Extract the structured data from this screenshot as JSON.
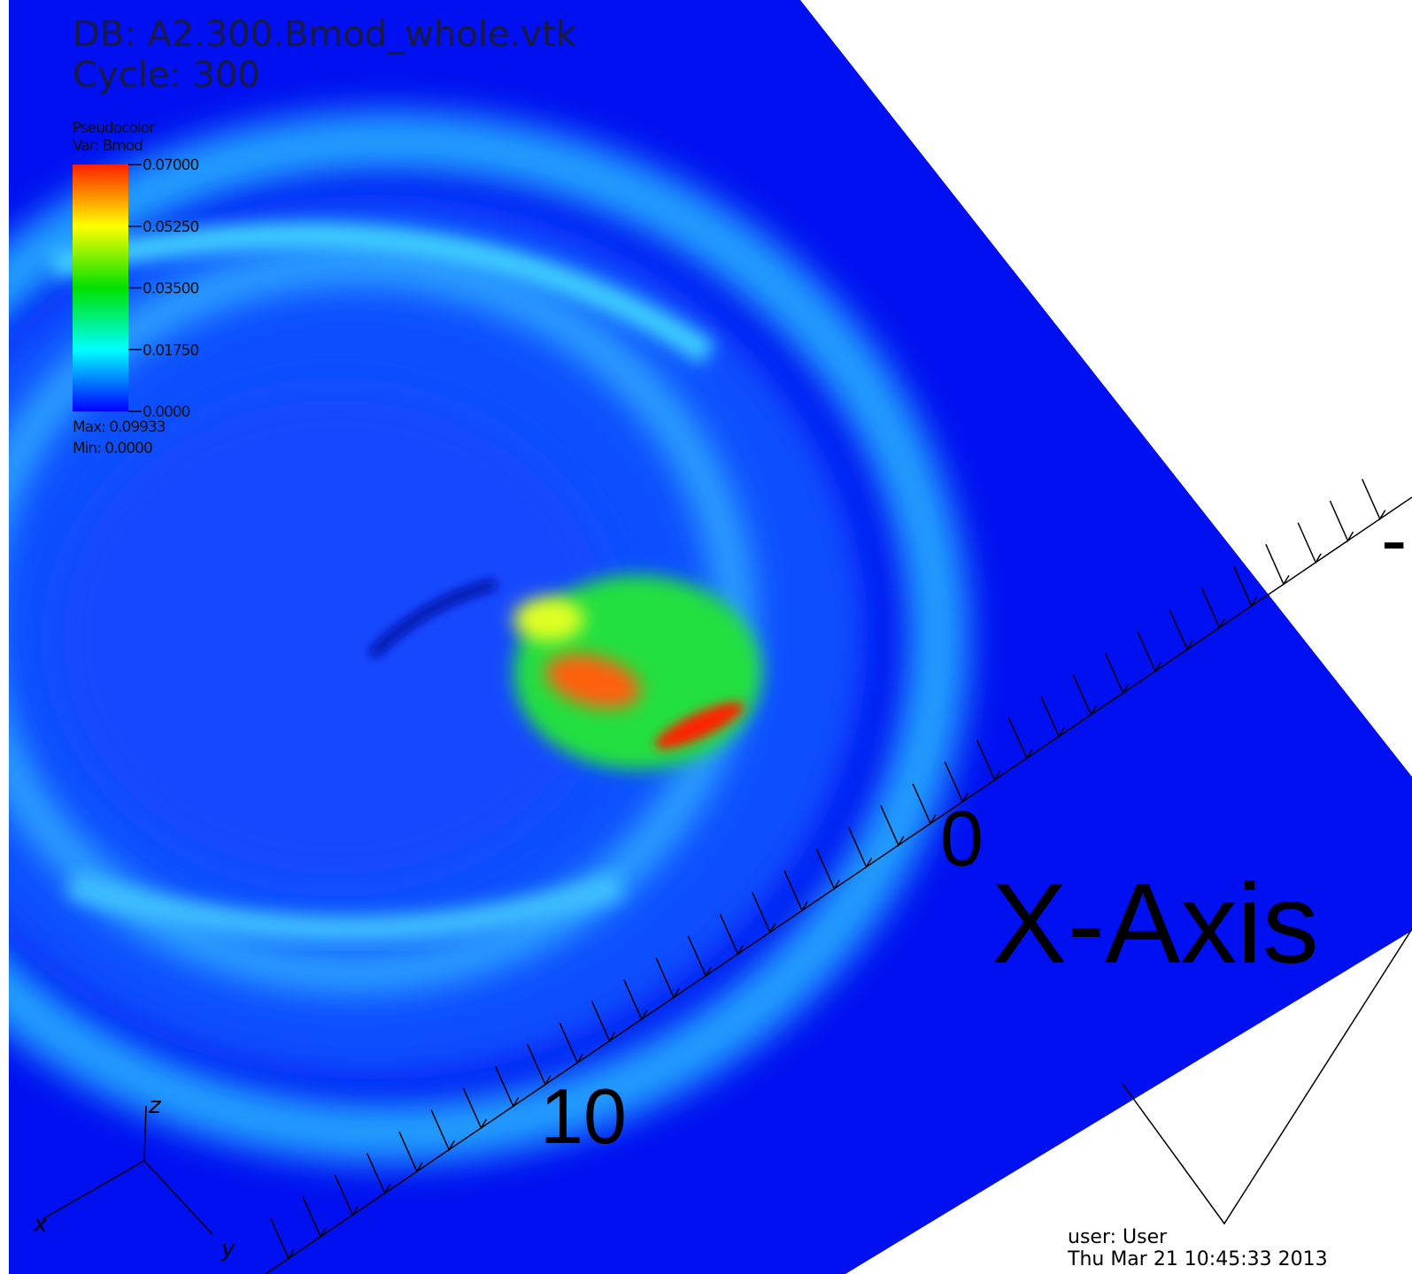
{
  "header": {
    "database": "DB: A2.300.Bmod_whole.vtk",
    "cycle": "Cycle: 300"
  },
  "legend": {
    "plot": "Pseudocolor",
    "variable": "Var: Bmod",
    "ticks": [
      "0.07000",
      "0.05250",
      "0.03500",
      "0.01750",
      "0.0000"
    ],
    "max": "Max:  0.09933",
    "min": "Min:  0.0000"
  },
  "axis": {
    "title": "X-Axis",
    "labels": [
      "0",
      "10"
    ],
    "partial": "-"
  },
  "triad": {
    "x": "x",
    "y": "y",
    "z": "z"
  },
  "footer": {
    "user": "user: User",
    "date": "Thu Mar 21 10:45:33 2013"
  }
}
